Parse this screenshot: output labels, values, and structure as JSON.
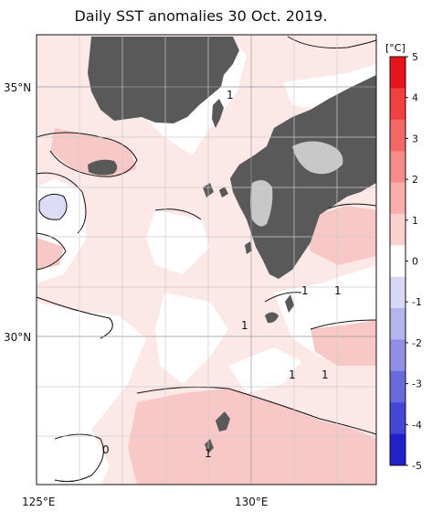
{
  "title": "Daily SST anomalies 30 Oct. 2019.",
  "axes": {
    "lon_labels": [
      "125°E",
      "130°E"
    ],
    "lat_labels": [
      "35°N",
      "30°N"
    ]
  },
  "colorbar": {
    "unit": "[°C]",
    "ticks": [
      "5",
      "4",
      "3",
      "2",
      "1",
      "0",
      "-1",
      "-2",
      "-3",
      "-4",
      "-5"
    ],
    "colors": [
      "#e8141c",
      "#f0403f",
      "#f46764",
      "#f78b89",
      "#f9aeac",
      "#fbd1cf",
      "#ffffff",
      "#d8d8f5",
      "#b4b4ee",
      "#8f8fe6",
      "#6a6ade",
      "#4545d6",
      "#2020cc"
    ]
  },
  "contour_labels": [
    "1",
    "1",
    "1",
    "1",
    "1",
    "1",
    "0",
    "1"
  ],
  "colors": {
    "land": "#595959",
    "ice_or_lake": "#c8c8c8",
    "pos_light": "#fbe0df",
    "pos_mid": "#f7c5c3",
    "neg_light": "#dcdcf6",
    "grid": "#888888"
  }
}
